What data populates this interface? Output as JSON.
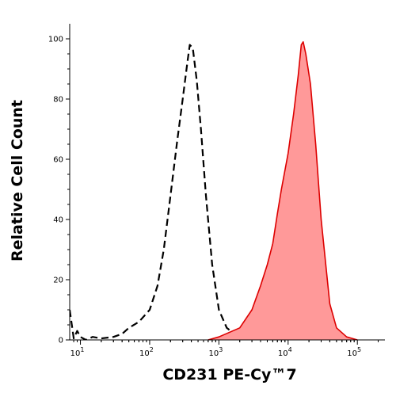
{
  "chart_data": {
    "type": "area",
    "title": "",
    "xlabel": "CD231 PE-Cy™7",
    "ylabel": "Relative Cell Count",
    "x_scale": "log",
    "xlim": [
      7,
      250000
    ],
    "ylim": [
      0,
      105
    ],
    "x_ticks": [
      10,
      100,
      1000,
      10000,
      100000
    ],
    "x_tick_labels": [
      {
        "base": "10",
        "exp": "1"
      },
      {
        "base": "10",
        "exp": "2"
      },
      {
        "base": "10",
        "exp": "3"
      },
      {
        "base": "10",
        "exp": "4"
      },
      {
        "base": "10",
        "exp": "5"
      }
    ],
    "y_ticks": [
      0,
      20,
      40,
      60,
      80,
      100
    ],
    "y_tick_labels": [
      "0",
      "20",
      "40",
      "60",
      "80",
      "100"
    ],
    "grid": false,
    "series": [
      {
        "style": "dashed",
        "color": "#000000",
        "points": [
          [
            7,
            10
          ],
          [
            8,
            0.5
          ],
          [
            9,
            3
          ],
          [
            10,
            1
          ],
          [
            12,
            0
          ],
          [
            15,
            1
          ],
          [
            20,
            0.5
          ],
          [
            30,
            1
          ],
          [
            40,
            2
          ],
          [
            50,
            4
          ],
          [
            70,
            6
          ],
          [
            100,
            10
          ],
          [
            130,
            18
          ],
          [
            160,
            30
          ],
          [
            200,
            48
          ],
          [
            250,
            66
          ],
          [
            300,
            80
          ],
          [
            350,
            92
          ],
          [
            380,
            98
          ],
          [
            420,
            97
          ],
          [
            480,
            86
          ],
          [
            550,
            70
          ],
          [
            650,
            48
          ],
          [
            800,
            25
          ],
          [
            1000,
            10
          ],
          [
            1300,
            4
          ],
          [
            1800,
            1.5
          ],
          [
            2500,
            0.5
          ],
          [
            4000,
            0
          ]
        ]
      },
      {
        "style": "filled",
        "color": "#dd0000",
        "fill": "#f99",
        "points": [
          [
            700,
            0
          ],
          [
            1000,
            1
          ],
          [
            2000,
            4
          ],
          [
            3000,
            10
          ],
          [
            4000,
            18
          ],
          [
            5000,
            25
          ],
          [
            6000,
            32
          ],
          [
            7000,
            42
          ],
          [
            8000,
            50
          ],
          [
            10000,
            62
          ],
          [
            12000,
            75
          ],
          [
            14000,
            88
          ],
          [
            15500,
            98
          ],
          [
            16500,
            99
          ],
          [
            18000,
            95
          ],
          [
            21000,
            85
          ],
          [
            25000,
            65
          ],
          [
            30000,
            40
          ],
          [
            40000,
            12
          ],
          [
            50000,
            4
          ],
          [
            70000,
            1
          ],
          [
            100000,
            0
          ]
        ]
      }
    ]
  }
}
